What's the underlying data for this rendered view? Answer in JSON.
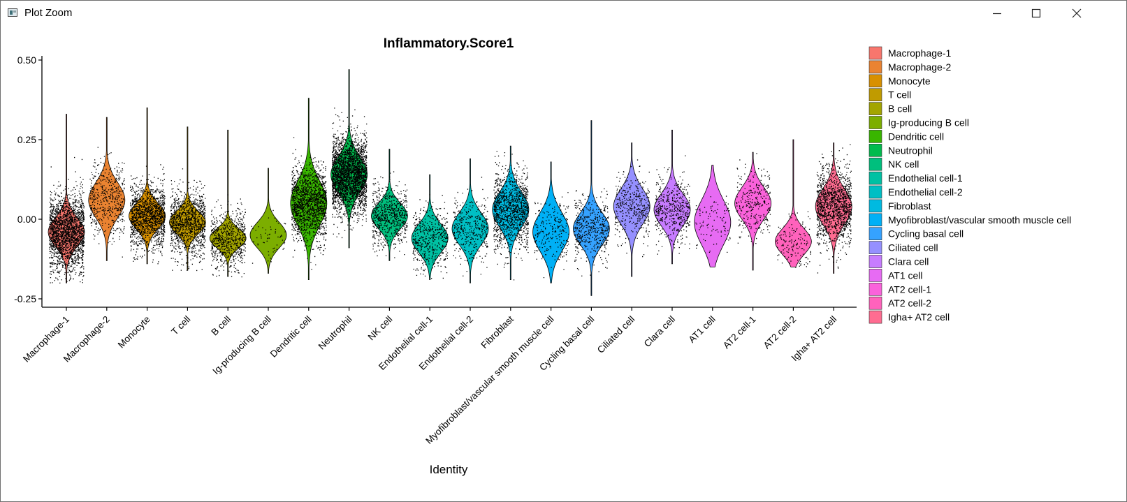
{
  "window": {
    "title": "Plot Zoom",
    "icon": "plot-zoom-app-icon",
    "controls": [
      "minimize-icon",
      "maximize-icon",
      "close-icon"
    ]
  },
  "chart_data": {
    "type": "violin",
    "title": "Inflammatory.Score1",
    "xlabel": "Identity",
    "ylabel": "",
    "ylim": [
      -0.28,
      0.51
    ],
    "yticks": [
      0.5,
      0.25,
      0.0,
      -0.25
    ],
    "ytick_labels": [
      "0.50",
      "0.25",
      "0.00",
      "-0.25"
    ],
    "grid": false,
    "legend_position": "right",
    "categories": [
      "Macrophage-1",
      "Macrophage-2",
      "Monocyte",
      "T cell",
      "B cell",
      "Ig-producing B cell",
      "Dendritic cell",
      "Neutrophil",
      "NK cell",
      "Endothelial cell-1",
      "Endothelial cell-2",
      "Fibroblast",
      "Myofibroblast/vascular smooth muscle cell",
      "Cycling basal cell",
      "Ciliated cell",
      "Clara cell",
      "AT1 cell",
      "AT2 cell-1",
      "AT2 cell-2",
      "Igha+ AT2  cell"
    ],
    "legend_labels": [
      "Macrophage-1",
      "Macrophage-2",
      "Monocyte",
      "T cell",
      "B cell",
      "Ig-producing B cell",
      "Dendritic cell",
      "Neutrophil",
      "NK cell",
      "Endothelial cell-1",
      "Endothelial cell-2",
      "Fibroblast",
      "Myofibroblast/vascular smooth muscle cell",
      "Cycling basal cell",
      "Ciliated cell",
      "Clara cell",
      "AT1 cell",
      "AT2 cell-1",
      "AT2 cell-2",
      "Igha+ AT2  cell"
    ],
    "colors": [
      "#F8766D",
      "#EA8331",
      "#D89000",
      "#C09B00",
      "#A3A500",
      "#7CAE00",
      "#39B600",
      "#00BB4E",
      "#00BF7D",
      "#00C1A3",
      "#00BFC4",
      "#00BAE0",
      "#00B0F6",
      "#35A2FF",
      "#9590FF",
      "#C77CFF",
      "#E76BF3",
      "#FA62DB",
      "#FF62BC",
      "#FF6C91"
    ],
    "series": [
      {
        "name": "Macrophage-1",
        "min": -0.2,
        "max": 0.33,
        "center": -0.04,
        "spread": 0.045,
        "points": 2200,
        "dot_spread": 0.06
      },
      {
        "name": "Macrophage-2",
        "min": -0.13,
        "max": 0.32,
        "center": 0.06,
        "spread": 0.055,
        "points": 500,
        "dot_spread": 0.06
      },
      {
        "name": "Monocyte",
        "min": -0.14,
        "max": 0.35,
        "center": 0.01,
        "spread": 0.04,
        "points": 1500,
        "dot_spread": 0.05
      },
      {
        "name": "T cell",
        "min": -0.16,
        "max": 0.29,
        "center": -0.01,
        "spread": 0.035,
        "points": 1200,
        "dot_spread": 0.05
      },
      {
        "name": "B cell",
        "min": -0.18,
        "max": 0.28,
        "center": -0.06,
        "spread": 0.03,
        "points": 700,
        "dot_spread": 0.045
      },
      {
        "name": "Ig-producing B cell",
        "min": -0.17,
        "max": 0.16,
        "center": -0.05,
        "spread": 0.04,
        "points": 60,
        "dot_spread": 0.04
      },
      {
        "name": "Dendritic cell",
        "min": -0.19,
        "max": 0.38,
        "center": 0.05,
        "spread": 0.07,
        "points": 1600,
        "dot_spread": 0.06
      },
      {
        "name": "Neutrophil",
        "min": -0.09,
        "max": 0.47,
        "center": 0.14,
        "spread": 0.055,
        "points": 2800,
        "dot_spread": 0.06
      },
      {
        "name": "NK cell",
        "min": -0.13,
        "max": 0.22,
        "center": 0.01,
        "spread": 0.04,
        "points": 700,
        "dot_spread": 0.05
      },
      {
        "name": "Endothelial cell-1",
        "min": -0.19,
        "max": 0.14,
        "center": -0.06,
        "spread": 0.045,
        "points": 500,
        "dot_spread": 0.05
      },
      {
        "name": "Endothelial cell-2",
        "min": -0.2,
        "max": 0.19,
        "center": -0.03,
        "spread": 0.05,
        "points": 400,
        "dot_spread": 0.05
      },
      {
        "name": "Fibroblast",
        "min": -0.19,
        "max": 0.23,
        "center": 0.03,
        "spread": 0.055,
        "points": 1300,
        "dot_spread": 0.06
      },
      {
        "name": "Myofibroblast/vascular smooth muscle cell",
        "min": -0.2,
        "max": 0.18,
        "center": -0.04,
        "spread": 0.06,
        "points": 250,
        "dot_spread": 0.05
      },
      {
        "name": "Cycling basal cell",
        "min": -0.24,
        "max": 0.31,
        "center": -0.03,
        "spread": 0.05,
        "points": 500,
        "dot_spread": 0.05
      },
      {
        "name": "Ciliated cell",
        "min": -0.18,
        "max": 0.24,
        "center": 0.04,
        "spread": 0.055,
        "points": 400,
        "dot_spread": 0.05
      },
      {
        "name": "Clara cell",
        "min": -0.14,
        "max": 0.28,
        "center": 0.03,
        "spread": 0.05,
        "points": 500,
        "dot_spread": 0.05
      },
      {
        "name": "AT1 cell",
        "min": -0.15,
        "max": 0.17,
        "center": -0.01,
        "spread": 0.07,
        "points": 100,
        "dot_spread": 0.04
      },
      {
        "name": "AT2 cell-1",
        "min": -0.16,
        "max": 0.21,
        "center": 0.05,
        "spread": 0.05,
        "points": 300,
        "dot_spread": 0.05
      },
      {
        "name": "AT2 cell-2",
        "min": -0.15,
        "max": 0.25,
        "center": -0.07,
        "spread": 0.04,
        "points": 150,
        "dot_spread": 0.045
      },
      {
        "name": "Igha+ AT2  cell",
        "min": -0.17,
        "max": 0.24,
        "center": 0.04,
        "spread": 0.055,
        "points": 1400,
        "dot_spread": 0.06
      }
    ]
  }
}
